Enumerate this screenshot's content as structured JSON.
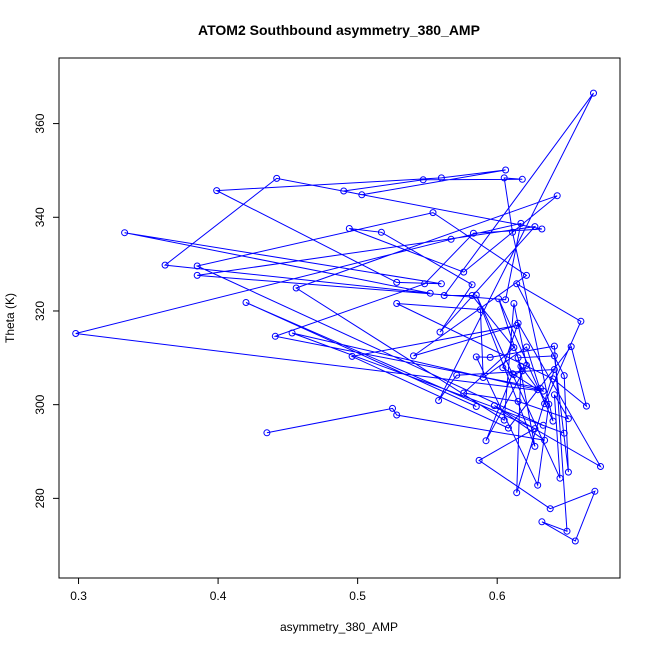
{
  "chart_data": {
    "type": "line",
    "title": "ATOM2 Southbound asymmetry_380_AMP",
    "xlabel": "asymmetry_380_AMP",
    "ylabel": "Theta (K)",
    "xlim": [
      0.286,
      0.688
    ],
    "ylim": [
      263.0,
      374.0
    ],
    "xticks": [
      0.3,
      0.4,
      0.5,
      0.6
    ],
    "xtick_labels": [
      "0.3",
      "0.4",
      "0.5",
      "0.6"
    ],
    "yticks": [
      280,
      300,
      320,
      340,
      360
    ],
    "ytick_labels": [
      "280",
      "300",
      "320",
      "340",
      "360"
    ],
    "grid": false,
    "legend": "none",
    "series": [
      {
        "color": "#0000ff",
        "marker": "open-circle",
        "points": [
          [
            0.435,
            294.0
          ],
          [
            0.525,
            299.2
          ],
          [
            0.528,
            297.8
          ],
          [
            0.634,
            292.4
          ],
          [
            0.598,
            299.8
          ],
          [
            0.674,
            286.8
          ],
          [
            0.615,
            317.4
          ],
          [
            0.604,
            307.9
          ],
          [
            0.612,
            306.4
          ],
          [
            0.618,
            307.2
          ],
          [
            0.601,
            322.6
          ],
          [
            0.64,
            296.5
          ],
          [
            0.611,
            336.8
          ],
          [
            0.605,
            348.4
          ],
          [
            0.618,
            348.1
          ],
          [
            0.547,
            348.0
          ],
          [
            0.49,
            345.6
          ],
          [
            0.503,
            344.8
          ],
          [
            0.606,
            350.1
          ],
          [
            0.56,
            348.4
          ],
          [
            0.399,
            345.7
          ],
          [
            0.528,
            326.1
          ],
          [
            0.56,
            325.8
          ],
          [
            0.333,
            336.7
          ],
          [
            0.552,
            323.8
          ],
          [
            0.362,
            329.8
          ],
          [
            0.442,
            348.3
          ],
          [
            0.632,
            337.5
          ],
          [
            0.583,
            336.6
          ],
          [
            0.548,
            325.8
          ],
          [
            0.441,
            314.6
          ],
          [
            0.631,
            303.5
          ],
          [
            0.633,
            302.9
          ],
          [
            0.298,
            315.2
          ],
          [
            0.567,
            335.3
          ],
          [
            0.617,
            338.7
          ],
          [
            0.606,
            322.4
          ],
          [
            0.385,
            327.6
          ],
          [
            0.627,
            338.0
          ],
          [
            0.559,
            315.5
          ],
          [
            0.582,
            325.6
          ],
          [
            0.517,
            336.8
          ],
          [
            0.494,
            337.6
          ],
          [
            0.576,
            328.3
          ],
          [
            0.643,
            344.6
          ],
          [
            0.456,
            324.9
          ],
          [
            0.605,
            296.7
          ],
          [
            0.612,
            321.6
          ],
          [
            0.621,
            308.4
          ],
          [
            0.592,
            292.3
          ],
          [
            0.611,
            306.6
          ],
          [
            0.629,
            303.2
          ],
          [
            0.453,
            315.3
          ],
          [
            0.648,
            293.9
          ],
          [
            0.633,
            295.6
          ],
          [
            0.385,
            329.6
          ],
          [
            0.554,
            341.0
          ],
          [
            0.621,
            327.6
          ],
          [
            0.54,
            310.4
          ],
          [
            0.614,
            316.9
          ],
          [
            0.496,
            310.3
          ],
          [
            0.608,
            295.0
          ],
          [
            0.653,
            312.4
          ],
          [
            0.664,
            299.7
          ],
          [
            0.64,
            305.5
          ],
          [
            0.528,
            321.6
          ],
          [
            0.588,
            320.3
          ],
          [
            0.59,
            305.8
          ],
          [
            0.621,
            312.3
          ],
          [
            0.634,
            300.2
          ],
          [
            0.66,
            317.8
          ],
          [
            0.614,
            325.8
          ],
          [
            0.648,
            306.2
          ],
          [
            0.651,
            285.6
          ],
          [
            0.641,
            310.4
          ],
          [
            0.615,
            310.0
          ],
          [
            0.627,
            291.1
          ],
          [
            0.585,
            323.4
          ],
          [
            0.645,
            284.3
          ],
          [
            0.641,
            302.1
          ],
          [
            0.651,
            297.0
          ],
          [
            0.615,
            300.7
          ],
          [
            0.576,
            302.5
          ],
          [
            0.612,
            312.2
          ],
          [
            0.582,
            323.3
          ],
          [
            0.562,
            323.3
          ],
          [
            0.669,
            366.5
          ],
          [
            0.558,
            300.9
          ],
          [
            0.571,
            306.3
          ],
          [
            0.641,
            307.5
          ],
          [
            0.614,
            281.2
          ],
          [
            0.617,
            308.2
          ],
          [
            0.637,
            300.1
          ],
          [
            0.629,
            282.8
          ],
          [
            0.585,
            310.2
          ],
          [
            0.595,
            310.1
          ],
          [
            0.641,
            312.5
          ],
          [
            0.65,
            273.0
          ],
          [
            0.632,
            275.0
          ],
          [
            0.656,
            270.9
          ],
          [
            0.67,
            281.5
          ],
          [
            0.638,
            277.8
          ],
          [
            0.587,
            288.1
          ],
          [
            0.627,
            294.9
          ],
          [
            0.42,
            321.8
          ],
          [
            0.585,
            299.6
          ]
        ]
      }
    ]
  }
}
